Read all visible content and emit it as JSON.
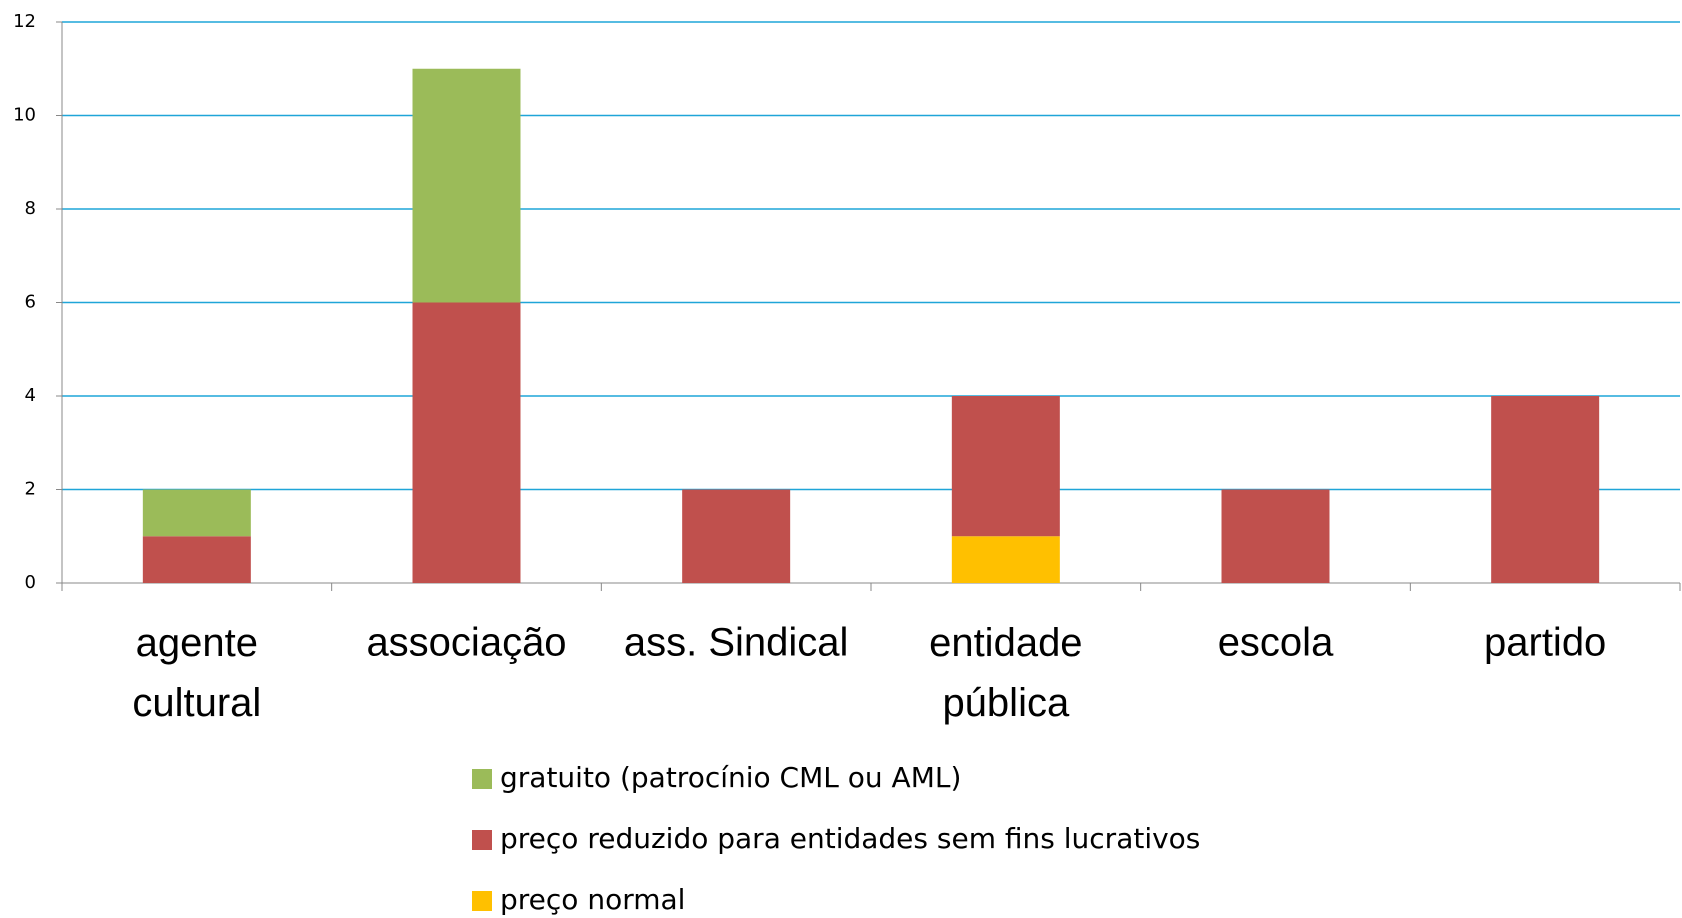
{
  "chart_data": {
    "type": "stacked_bar",
    "categories": [
      "agente cultural",
      "associação",
      "ass. Sindical",
      "entidade pública",
      "escola",
      "partido"
    ],
    "series": [
      {
        "name": "gratuito (patrocínio CML ou AML)",
        "color": "#9bbb59",
        "values": [
          1,
          5,
          0,
          0,
          0,
          0
        ]
      },
      {
        "name": "preço reduzido para entidades sem fins lucrativos",
        "color": "#c0504d",
        "values": [
          1,
          6,
          2,
          3,
          2,
          4
        ]
      },
      {
        "name": "preço normal",
        "color": "#ffc000",
        "values": [
          0,
          0,
          0,
          1,
          0,
          0
        ]
      }
    ],
    "ylim": [
      0,
      12
    ],
    "yticks": [
      0,
      2,
      4,
      6,
      8,
      10,
      12
    ],
    "grid": true,
    "legend": "bottom"
  }
}
